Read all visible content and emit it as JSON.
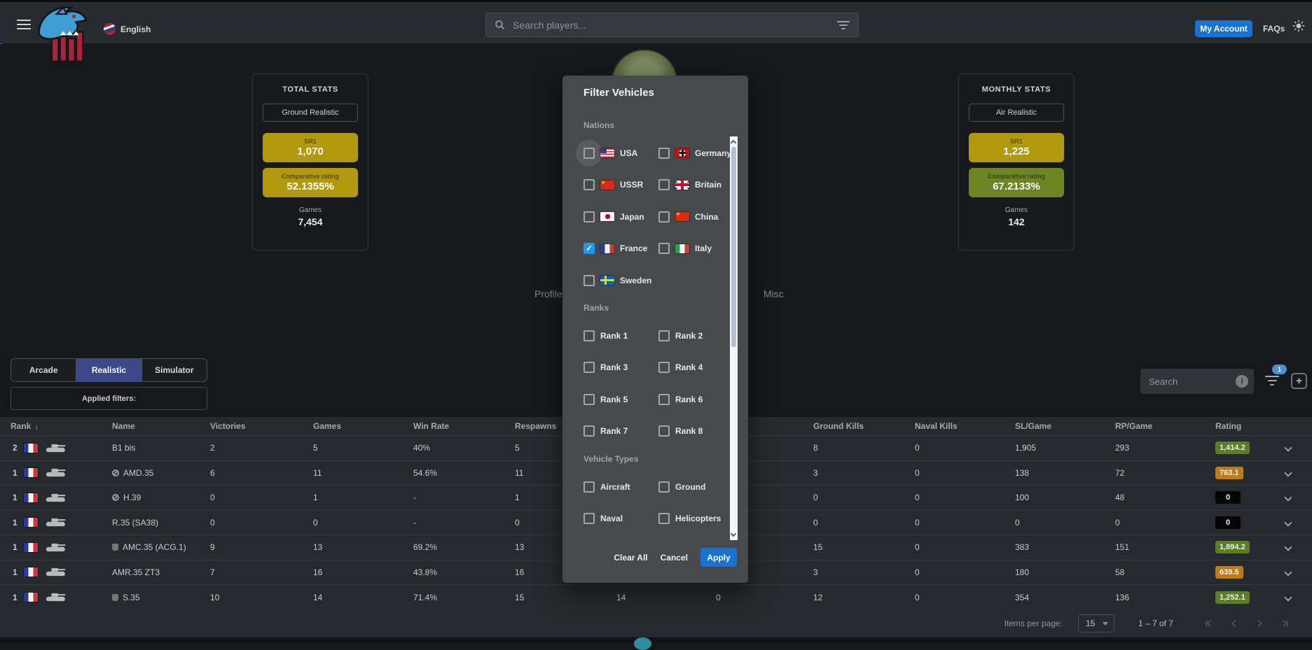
{
  "navbar": {
    "language_label": "English",
    "search_placeholder": "Search players...",
    "my_account_label": "My Account",
    "faqs_label": "FAQs"
  },
  "stats_cards": {
    "total": {
      "title": "TOTAL STATS",
      "mode": "Ground Realistic",
      "sr_label": "SR1",
      "sr_value": "1,070",
      "cr_label": "Comparative rating",
      "cr_value": "52.1355%",
      "cr_color": "gold",
      "games_label": "Games",
      "games_value": "7,454"
    },
    "monthly": {
      "title": "MONTHLY STATS",
      "mode": "Air Realistic",
      "sr_label": "SR1",
      "sr_value": "1,225",
      "cr_label": "Comparative rating",
      "cr_value": "67.2133%",
      "cr_color": "green",
      "games_label": "Games",
      "games_value": "142"
    }
  },
  "profile_tabs": {
    "profile": "Profile",
    "misc": "Misc"
  },
  "mode_tabs": [
    {
      "label": "Arcade",
      "active": false
    },
    {
      "label": "Realistic",
      "active": true
    },
    {
      "label": "Simulator",
      "active": false
    }
  ],
  "applied_filters_label": "Applied filters:",
  "toolbar": {
    "search_placeholder": "Search",
    "info_icon_glyph": "i",
    "filter_count_badge": "1",
    "add_button_glyph": "+"
  },
  "table": {
    "columns": [
      {
        "label": "Rank",
        "sort": "desc"
      },
      {
        "label": "Name"
      },
      {
        "label": "Victories"
      },
      {
        "label": "Games"
      },
      {
        "label": "Win Rate"
      },
      {
        "label": "Respawns"
      },
      {
        "label": "",
        "hidden": true
      },
      {
        "label": "",
        "hidden": true
      },
      {
        "label": "Ground Kills"
      },
      {
        "label": "Naval Kills"
      },
      {
        "label": "SL/Game"
      },
      {
        "label": "RP/Game"
      },
      {
        "label": "Rating"
      }
    ],
    "rows": [
      {
        "rank": "2",
        "nation": "france",
        "marker": "",
        "name": "B1 bis",
        "victories": "2",
        "games": "5",
        "win_rate": "40%",
        "respawns": "5",
        "col7": "",
        "col8": "",
        "ground_kills": "8",
        "naval_kills": "0",
        "sl_game": "1,905",
        "rp_game": "293",
        "rating": "1,414.2",
        "rating_color": "green"
      },
      {
        "rank": "1",
        "nation": "france",
        "marker": "light",
        "name": "AMD.35",
        "victories": "6",
        "games": "11",
        "win_rate": "54.6%",
        "respawns": "11",
        "col7": "",
        "col8": "",
        "ground_kills": "3",
        "naval_kills": "0",
        "sl_game": "138",
        "rp_game": "72",
        "rating": "763.1",
        "rating_color": "orange"
      },
      {
        "rank": "1",
        "nation": "france",
        "marker": "light",
        "name": "H.39",
        "victories": "0",
        "games": "1",
        "win_rate": "-",
        "respawns": "1",
        "col7": "",
        "col8": "",
        "ground_kills": "0",
        "naval_kills": "0",
        "sl_game": "100",
        "rp_game": "48",
        "rating": "0",
        "rating_color": "black"
      },
      {
        "rank": "1",
        "nation": "france",
        "marker": "",
        "name": "R.35 (SA38)",
        "victories": "0",
        "games": "0",
        "win_rate": "-",
        "respawns": "0",
        "col7": "",
        "col8": "",
        "ground_kills": "0",
        "naval_kills": "0",
        "sl_game": "0",
        "rp_game": "0",
        "rating": "0",
        "rating_color": "black"
      },
      {
        "rank": "1",
        "nation": "france",
        "marker": "dark",
        "name": "AMC.35 (ACG.1)",
        "victories": "9",
        "games": "13",
        "win_rate": "69.2%",
        "respawns": "13",
        "col7": "",
        "col8": "",
        "ground_kills": "15",
        "naval_kills": "0",
        "sl_game": "383",
        "rp_game": "151",
        "rating": "1,894.2",
        "rating_color": "green"
      },
      {
        "rank": "1",
        "nation": "france",
        "marker": "",
        "name": "AMR.35 ZT3",
        "victories": "7",
        "games": "16",
        "win_rate": "43.8%",
        "respawns": "16",
        "col7": "",
        "col8": "",
        "ground_kills": "3",
        "naval_kills": "0",
        "sl_game": "180",
        "rp_game": "58",
        "rating": "639.5",
        "rating_color": "orange"
      },
      {
        "rank": "1",
        "nation": "france",
        "marker": "dark",
        "name": "S.35",
        "victories": "10",
        "games": "14",
        "win_rate": "71.4%",
        "respawns": "15",
        "col7": "14",
        "col8": "0",
        "ground_kills": "12",
        "naval_kills": "0",
        "sl_game": "354",
        "rp_game": "136",
        "rating": "1,252.1",
        "rating_color": "green"
      }
    ]
  },
  "pagination": {
    "items_per_page_label": "Items per page:",
    "items_per_page_value": "15",
    "range_label": "1 – 7 of 7"
  },
  "modal": {
    "title": "Filter Vehicles",
    "nations_label": "Nations",
    "nations": [
      {
        "label": "USA",
        "flag": "usa",
        "checked": false,
        "focused": true
      },
      {
        "label": "Germany",
        "flag": "germany",
        "checked": false
      },
      {
        "label": "USSR",
        "flag": "ussr",
        "checked": false
      },
      {
        "label": "Britain",
        "flag": "britain",
        "checked": false
      },
      {
        "label": "Japan",
        "flag": "japan",
        "checked": false
      },
      {
        "label": "China",
        "flag": "china",
        "checked": false
      },
      {
        "label": "France",
        "flag": "france",
        "checked": true
      },
      {
        "label": "Italy",
        "flag": "italy",
        "checked": false
      },
      {
        "label": "Sweden",
        "flag": "sweden",
        "checked": false
      }
    ],
    "ranks_label": "Ranks",
    "ranks": [
      {
        "label": "Rank 1",
        "checked": false
      },
      {
        "label": "Rank 2",
        "checked": false
      },
      {
        "label": "Rank 3",
        "checked": false
      },
      {
        "label": "Rank 4",
        "checked": false
      },
      {
        "label": "Rank 5",
        "checked": false
      },
      {
        "label": "Rank 6",
        "checked": false
      },
      {
        "label": "Rank 7",
        "checked": false
      },
      {
        "label": "Rank 8",
        "checked": false
      }
    ],
    "vehicle_types_label": "Vehicle Types",
    "vehicle_types": [
      {
        "label": "Aircraft",
        "checked": false
      },
      {
        "label": "Ground",
        "checked": false
      },
      {
        "label": "Naval",
        "checked": false
      },
      {
        "label": "Helicopters",
        "checked": false
      }
    ],
    "buttons": {
      "clear": "Clear All",
      "cancel": "Cancel",
      "apply": "Apply"
    }
  },
  "colors": {
    "accent_blue": "#1673d2",
    "checkbox_blue": "#2196f3",
    "tab_active_indigo": "#3d478c",
    "badge_gold": "#b0990f",
    "badge_green": "#6e8523",
    "rating_green": "#5c7e22",
    "rating_orange": "#bf7c16",
    "rating_black": "#050505",
    "filter_count_badge_blue": "#4d8fd6"
  }
}
